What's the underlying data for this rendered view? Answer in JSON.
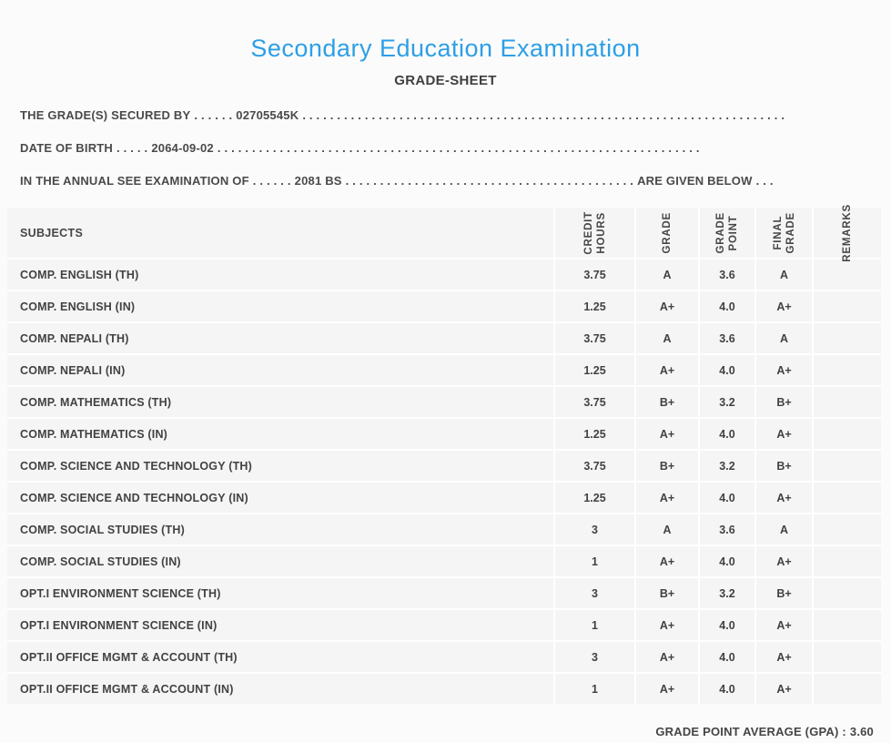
{
  "page": {
    "title": "Secondary Education Examination",
    "subtitle": "GRADE-SHEET"
  },
  "info_lines": [
    {
      "label": "THE GRADE(S) SECURED BY",
      "dots1": ". . . . . .",
      "value": "02705545K",
      "dots2": ". . . . . . . . . . . . . . . . . . . . . . . . . . . . . . . . . . . . . . . . . . . . . . . . . . . . . . . . . . . . . . . . . . . . . .",
      "suffix": "",
      "dots3": ""
    },
    {
      "label": "DATE OF BIRTH",
      "dots1": ". . . . .",
      "value": "2064-09-02",
      "dots2": ". . . . . . . . . . . . . . . . . . . . . . . . . . . . . . . . . . . . . . . . . . . . . . . . . . . . . . . . . . . . . . . . . . . . . .",
      "suffix": "",
      "dots3": ""
    },
    {
      "label": "IN THE ANNUAL SEE EXAMINATION OF",
      "dots1": ". . . . . .",
      "value": "2081 BS",
      "dots2": ". . . . . . . . . . . . . . . . . . . . . . . . . . . . . . . . . . . . . . . . . .",
      "suffix": "ARE GIVEN BELOW",
      "dots3": ". . ."
    }
  ],
  "table": {
    "headers": {
      "subjects": "SUBJECTS",
      "credit_hours": "CREDIT\nHOURS",
      "grade": "GRADE",
      "grade_point": "GRADE\nPOINT",
      "final_grade": "FINAL\nGRADE",
      "remarks": "REMARKS"
    },
    "rows": [
      {
        "subject": "COMP. ENGLISH (TH)",
        "credit_hours": "3.75",
        "grade": "A",
        "grade_point": "3.6",
        "final_grade": "A",
        "remarks": ""
      },
      {
        "subject": "COMP. ENGLISH (IN)",
        "credit_hours": "1.25",
        "grade": "A+",
        "grade_point": "4.0",
        "final_grade": "A+",
        "remarks": ""
      },
      {
        "subject": "COMP. NEPALI (TH)",
        "credit_hours": "3.75",
        "grade": "A",
        "grade_point": "3.6",
        "final_grade": "A",
        "remarks": ""
      },
      {
        "subject": "COMP. NEPALI (IN)",
        "credit_hours": "1.25",
        "grade": "A+",
        "grade_point": "4.0",
        "final_grade": "A+",
        "remarks": ""
      },
      {
        "subject": "COMP. MATHEMATICS (TH)",
        "credit_hours": "3.75",
        "grade": "B+",
        "grade_point": "3.2",
        "final_grade": "B+",
        "remarks": ""
      },
      {
        "subject": "COMP. MATHEMATICS (IN)",
        "credit_hours": "1.25",
        "grade": "A+",
        "grade_point": "4.0",
        "final_grade": "A+",
        "remarks": ""
      },
      {
        "subject": "COMP. SCIENCE AND TECHNOLOGY (TH)",
        "credit_hours": "3.75",
        "grade": "B+",
        "grade_point": "3.2",
        "final_grade": "B+",
        "remarks": ""
      },
      {
        "subject": "COMP. SCIENCE AND TECHNOLOGY (IN)",
        "credit_hours": "1.25",
        "grade": "A+",
        "grade_point": "4.0",
        "final_grade": "A+",
        "remarks": ""
      },
      {
        "subject": "COMP. SOCIAL STUDIES (TH)",
        "credit_hours": "3",
        "grade": "A",
        "grade_point": "3.6",
        "final_grade": "A",
        "remarks": ""
      },
      {
        "subject": "COMP. SOCIAL STUDIES (IN)",
        "credit_hours": "1",
        "grade": "A+",
        "grade_point": "4.0",
        "final_grade": "A+",
        "remarks": ""
      },
      {
        "subject": "OPT.I ENVIRONMENT SCIENCE (TH)",
        "credit_hours": "3",
        "grade": "B+",
        "grade_point": "3.2",
        "final_grade": "B+",
        "remarks": ""
      },
      {
        "subject": "OPT.I ENVIRONMENT SCIENCE (IN)",
        "credit_hours": "1",
        "grade": "A+",
        "grade_point": "4.0",
        "final_grade": "A+",
        "remarks": ""
      },
      {
        "subject": "OPT.II OFFICE MGMT & ACCOUNT (TH)",
        "credit_hours": "3",
        "grade": "A+",
        "grade_point": "4.0",
        "final_grade": "A+",
        "remarks": ""
      },
      {
        "subject": "OPT.II OFFICE MGMT & ACCOUNT (IN)",
        "credit_hours": "1",
        "grade": "A+",
        "grade_point": "4.0",
        "final_grade": "A+",
        "remarks": ""
      }
    ]
  },
  "footer": {
    "gpa_label": "GRADE POINT AVERAGE (GPA) :",
    "gpa_value": "3.60"
  },
  "colors": {
    "title_blue": "#2d9fe6",
    "text_gray": "#454545",
    "cell_bg": "#f5f5f5",
    "page_bg": "#fbfbfb"
  }
}
